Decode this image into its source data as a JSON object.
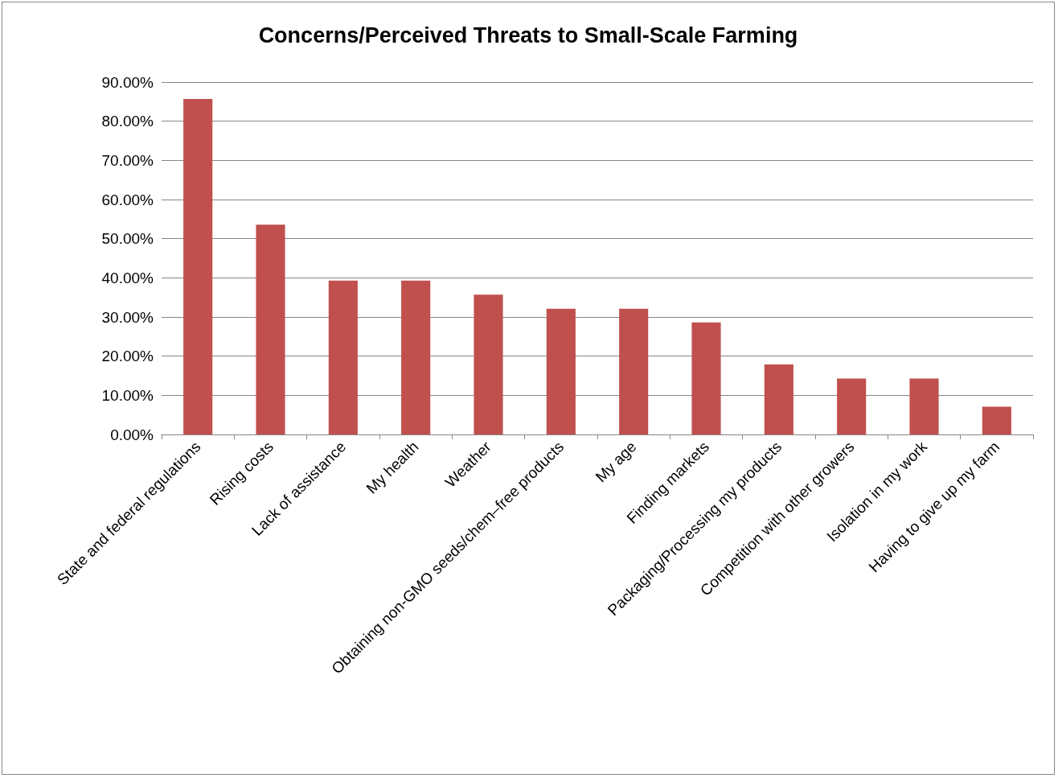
{
  "chart_data": {
    "type": "bar",
    "title": "Concerns/Perceived Threats to Small-Scale Farming",
    "categories": [
      "State and federal regulations",
      "Rising costs",
      "Lack of assistance",
      "My health",
      "Weather",
      "Obtaining non-GMO seeds/chem–free products",
      "My age",
      "Finding markets",
      "Packaging/Processing my products",
      "Competition with other growers",
      "Isolation in my work",
      "Having to give up my farm"
    ],
    "values": [
      85.7,
      53.6,
      39.3,
      39.3,
      35.7,
      32.1,
      32.1,
      28.6,
      17.9,
      14.3,
      14.3,
      7.1
    ],
    "color": "#c0504d",
    "ylim": [
      0,
      90
    ],
    "yticks": [
      {
        "value": 0,
        "label": "0.00%"
      },
      {
        "value": 10,
        "label": "10.00%"
      },
      {
        "value": 20,
        "label": "20.00%"
      },
      {
        "value": 30,
        "label": "30.00%"
      },
      {
        "value": 40,
        "label": "40.00%"
      },
      {
        "value": 50,
        "label": "50.00%"
      },
      {
        "value": 60,
        "label": "60.00%"
      },
      {
        "value": 70,
        "label": "70.00%"
      },
      {
        "value": 80,
        "label": "80.00%"
      },
      {
        "value": 90,
        "label": "90.00%"
      }
    ],
    "grid": "y"
  }
}
